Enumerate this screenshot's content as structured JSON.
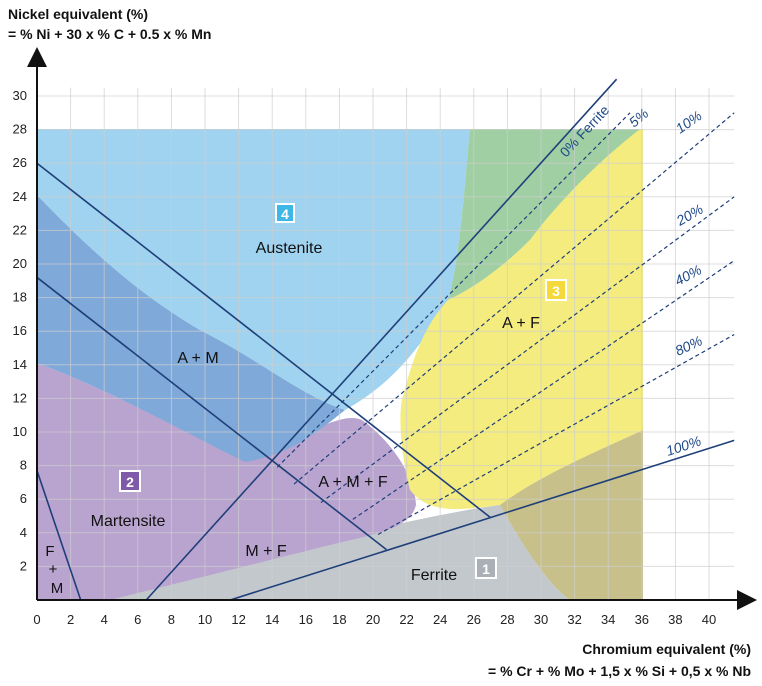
{
  "chart_data": {
    "type": "area",
    "title": "",
    "ylabel_line1": "Nickel equivalent (%)",
    "ylabel_line2": "= % Ni + 30 x % C + 0.5 x % Mn",
    "xlabel_line1": "Chromium equivalent (%)",
    "xlabel_line2": "= % Cr + % Mo + 1,5 x % Si + 0,5 x % Nb",
    "xlim": [
      0,
      42
    ],
    "ylim": [
      0,
      31
    ],
    "x_ticks": [
      "0",
      "2",
      "4",
      "6",
      "8",
      "10",
      "12",
      "14",
      "16",
      "18",
      "20",
      "22",
      "24",
      "26",
      "28",
      "30",
      "32",
      "34",
      "36",
      "38",
      "40"
    ],
    "y_ticks": [
      "2",
      "4",
      "6",
      "8",
      "10",
      "12",
      "14",
      "16",
      "18",
      "20",
      "22",
      "24",
      "26",
      "28",
      "30"
    ],
    "grid": true,
    "colors": {
      "austenite": "#9fd3ef",
      "austenite_martensite": "#7fa9d8",
      "martensite": "#b9a3cf",
      "ferrite_zone": "#c3c8cc",
      "austenite_ferrite": "#f4ec7f",
      "green_zone": "#9fcfa3",
      "olive_zone": "#c7c08a",
      "boundary": "#1f3f7a",
      "badge_austenite": "#3fb7e6",
      "badge_martensite": "#7e5aa8",
      "badge_af": "#f5d93a",
      "badge_ferrite": "#aab0b6"
    },
    "regions": [
      {
        "name": "Austenite",
        "badge": "4"
      },
      {
        "name": "Martensite",
        "badge": "2"
      },
      {
        "name": "A + F",
        "badge": "3"
      },
      {
        "name": "Ferrite",
        "badge": "1"
      },
      {
        "name": "A + M"
      },
      {
        "name": "A + M + F"
      },
      {
        "name": "M + F"
      },
      {
        "name_line1": "F",
        "name_line2": "+",
        "name_line3": "M"
      }
    ],
    "ferrite_lines": [
      {
        "label": "0% Ferrite",
        "style": "solid",
        "points": [
          [
            6.5,
            0
          ],
          [
            34.5,
            31
          ]
        ]
      },
      {
        "label": "5%",
        "style": "dashed",
        "points": [
          [
            14.3,
            7.9
          ],
          [
            35.3,
            29
          ]
        ]
      },
      {
        "label": "10%",
        "style": "dashed",
        "points": [
          [
            15.3,
            6.9
          ],
          [
            41.5,
            29
          ]
        ]
      },
      {
        "label": "20%",
        "style": "dashed",
        "points": [
          [
            16.9,
            5.8
          ],
          [
            41.5,
            24
          ]
        ]
      },
      {
        "label": "40%",
        "style": "dashed",
        "points": [
          [
            18.8,
            4.8
          ],
          [
            41.5,
            20.2
          ]
        ]
      },
      {
        "label": "80%",
        "style": "dashed",
        "points": [
          [
            20.3,
            3.9
          ],
          [
            41.5,
            15.8
          ]
        ]
      },
      {
        "label": "100%",
        "style": "solid",
        "points": [
          [
            11.5,
            0
          ],
          [
            41.5,
            9.5
          ]
        ]
      }
    ],
    "boundary_lines": [
      {
        "name": "austenite-martensite-upper",
        "points": [
          [
            0,
            26
          ],
          [
            27,
            4.9
          ]
        ]
      },
      {
        "name": "austenite-martensite-lower",
        "points": [
          [
            0,
            19.2
          ],
          [
            20.8,
            3
          ]
        ]
      },
      {
        "name": "martensite-fm",
        "points": [
          [
            0,
            7.7
          ],
          [
            2.6,
            0
          ]
        ]
      }
    ]
  }
}
